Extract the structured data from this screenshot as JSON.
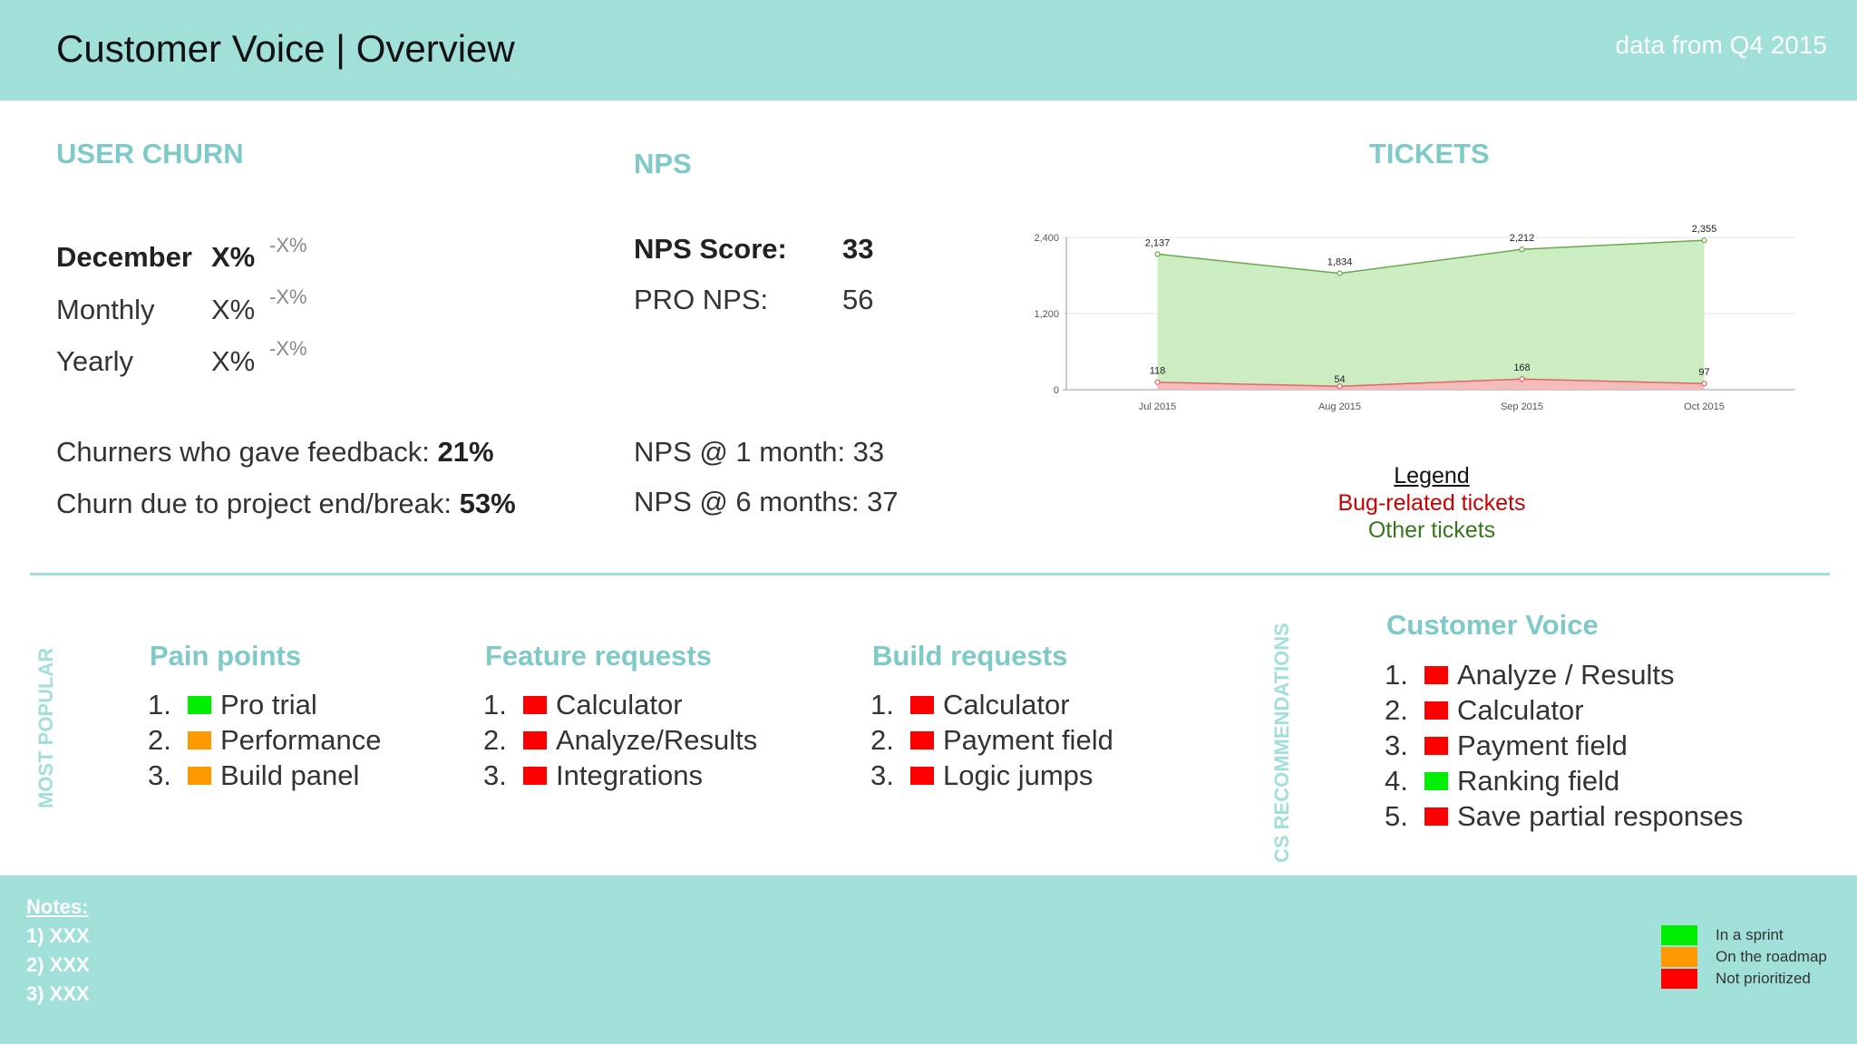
{
  "header": {
    "title": "Customer Voice | Overview",
    "data_range": "data from Q4 2015"
  },
  "churn": {
    "title": "USER CHURN",
    "rows": [
      {
        "label": "December",
        "value": "X%",
        "change": "-X%"
      },
      {
        "label": "Monthly",
        "value": "X%",
        "change": "-X%"
      },
      {
        "label": "Yearly",
        "value": "X%",
        "change": "-X%"
      }
    ],
    "feedback_label": "Churners who gave feedback: ",
    "feedback_value": "21%",
    "project_end_label": "Churn due to project end/break: ",
    "project_end_value": "53%"
  },
  "nps": {
    "title": "NPS",
    "score_label": "NPS Score:",
    "score_value": "33",
    "pro_label": "PRO NPS:",
    "pro_value": "56",
    "one_month": "NPS @ 1 month: 33",
    "six_months": "NPS @ 6 months: 37"
  },
  "tickets": {
    "title": "TICKETS",
    "legend_title": "Legend",
    "legend_bug": "Bug-related tickets",
    "legend_other": "Other tickets"
  },
  "chart_data": {
    "type": "area",
    "categories": [
      "Jul 2015",
      "Aug 2015",
      "Sep 2015",
      "Oct 2015"
    ],
    "series": [
      {
        "name": "Other tickets",
        "values": [
          2137,
          1834,
          2212,
          2355
        ],
        "color": "#6aa84f"
      },
      {
        "name": "Bug-related tickets",
        "values": [
          118,
          54,
          168,
          97
        ],
        "color": "#e06666"
      }
    ],
    "value_labels": [
      [
        "2,137",
        "1,834",
        "2,212",
        "2,355"
      ],
      [
        "118",
        "54",
        "168",
        "97"
      ]
    ],
    "yticks": [
      0,
      1200,
      2400
    ],
    "ytick_labels": [
      "0",
      "1,200",
      "2,400"
    ],
    "ylim": [
      0,
      2400
    ],
    "grid": true,
    "legend": "below"
  },
  "popular": {
    "side_label": "MOST POPULAR",
    "pain_points": {
      "title": "Pain points",
      "items": [
        {
          "num": "1.",
          "label": "Pro trial",
          "status": "green"
        },
        {
          "num": "2.",
          "label": "Performance",
          "status": "orange"
        },
        {
          "num": "3.",
          "label": "Build panel",
          "status": "orange"
        }
      ]
    },
    "feature_requests": {
      "title": "Feature requests",
      "items": [
        {
          "num": "1.",
          "label": "Calculator",
          "status": "red"
        },
        {
          "num": "2.",
          "label": "Analyze/Results",
          "status": "red"
        },
        {
          "num": "3.",
          "label": "Integrations",
          "status": "red"
        }
      ]
    },
    "build_requests": {
      "title": "Build requests",
      "items": [
        {
          "num": "1.",
          "label": "Calculator",
          "status": "red"
        },
        {
          "num": "2.",
          "label": "Payment field",
          "status": "red"
        },
        {
          "num": "3.",
          "label": "Logic jumps",
          "status": "red"
        }
      ]
    }
  },
  "cs": {
    "side_label": "CS RECOMMENDATIONS",
    "title": "Customer Voice",
    "items": [
      {
        "num": "1.",
        "label": "Analyze / Results",
        "status": "red"
      },
      {
        "num": "2.",
        "label": "Calculator",
        "status": "red"
      },
      {
        "num": "3.",
        "label": "Payment field",
        "status": "red"
      },
      {
        "num": "4.",
        "label": "Ranking field",
        "status": "green"
      },
      {
        "num": "5.",
        "label": "Save partial responses",
        "status": "red"
      }
    ]
  },
  "status_colors": {
    "green": "#00ee00",
    "orange": "#ff9900",
    "red": "#ff0000"
  },
  "footer": {
    "notes_title": "Notes:",
    "notes": [
      "1) XXX",
      "2) XXX",
      "3) XXX"
    ],
    "status_legend": [
      {
        "label": "In a sprint",
        "color": "#00ee00"
      },
      {
        "label": "On the roadmap",
        "color": "#ff9900"
      },
      {
        "label": "Not prioritized",
        "color": "#ff0000"
      }
    ]
  }
}
